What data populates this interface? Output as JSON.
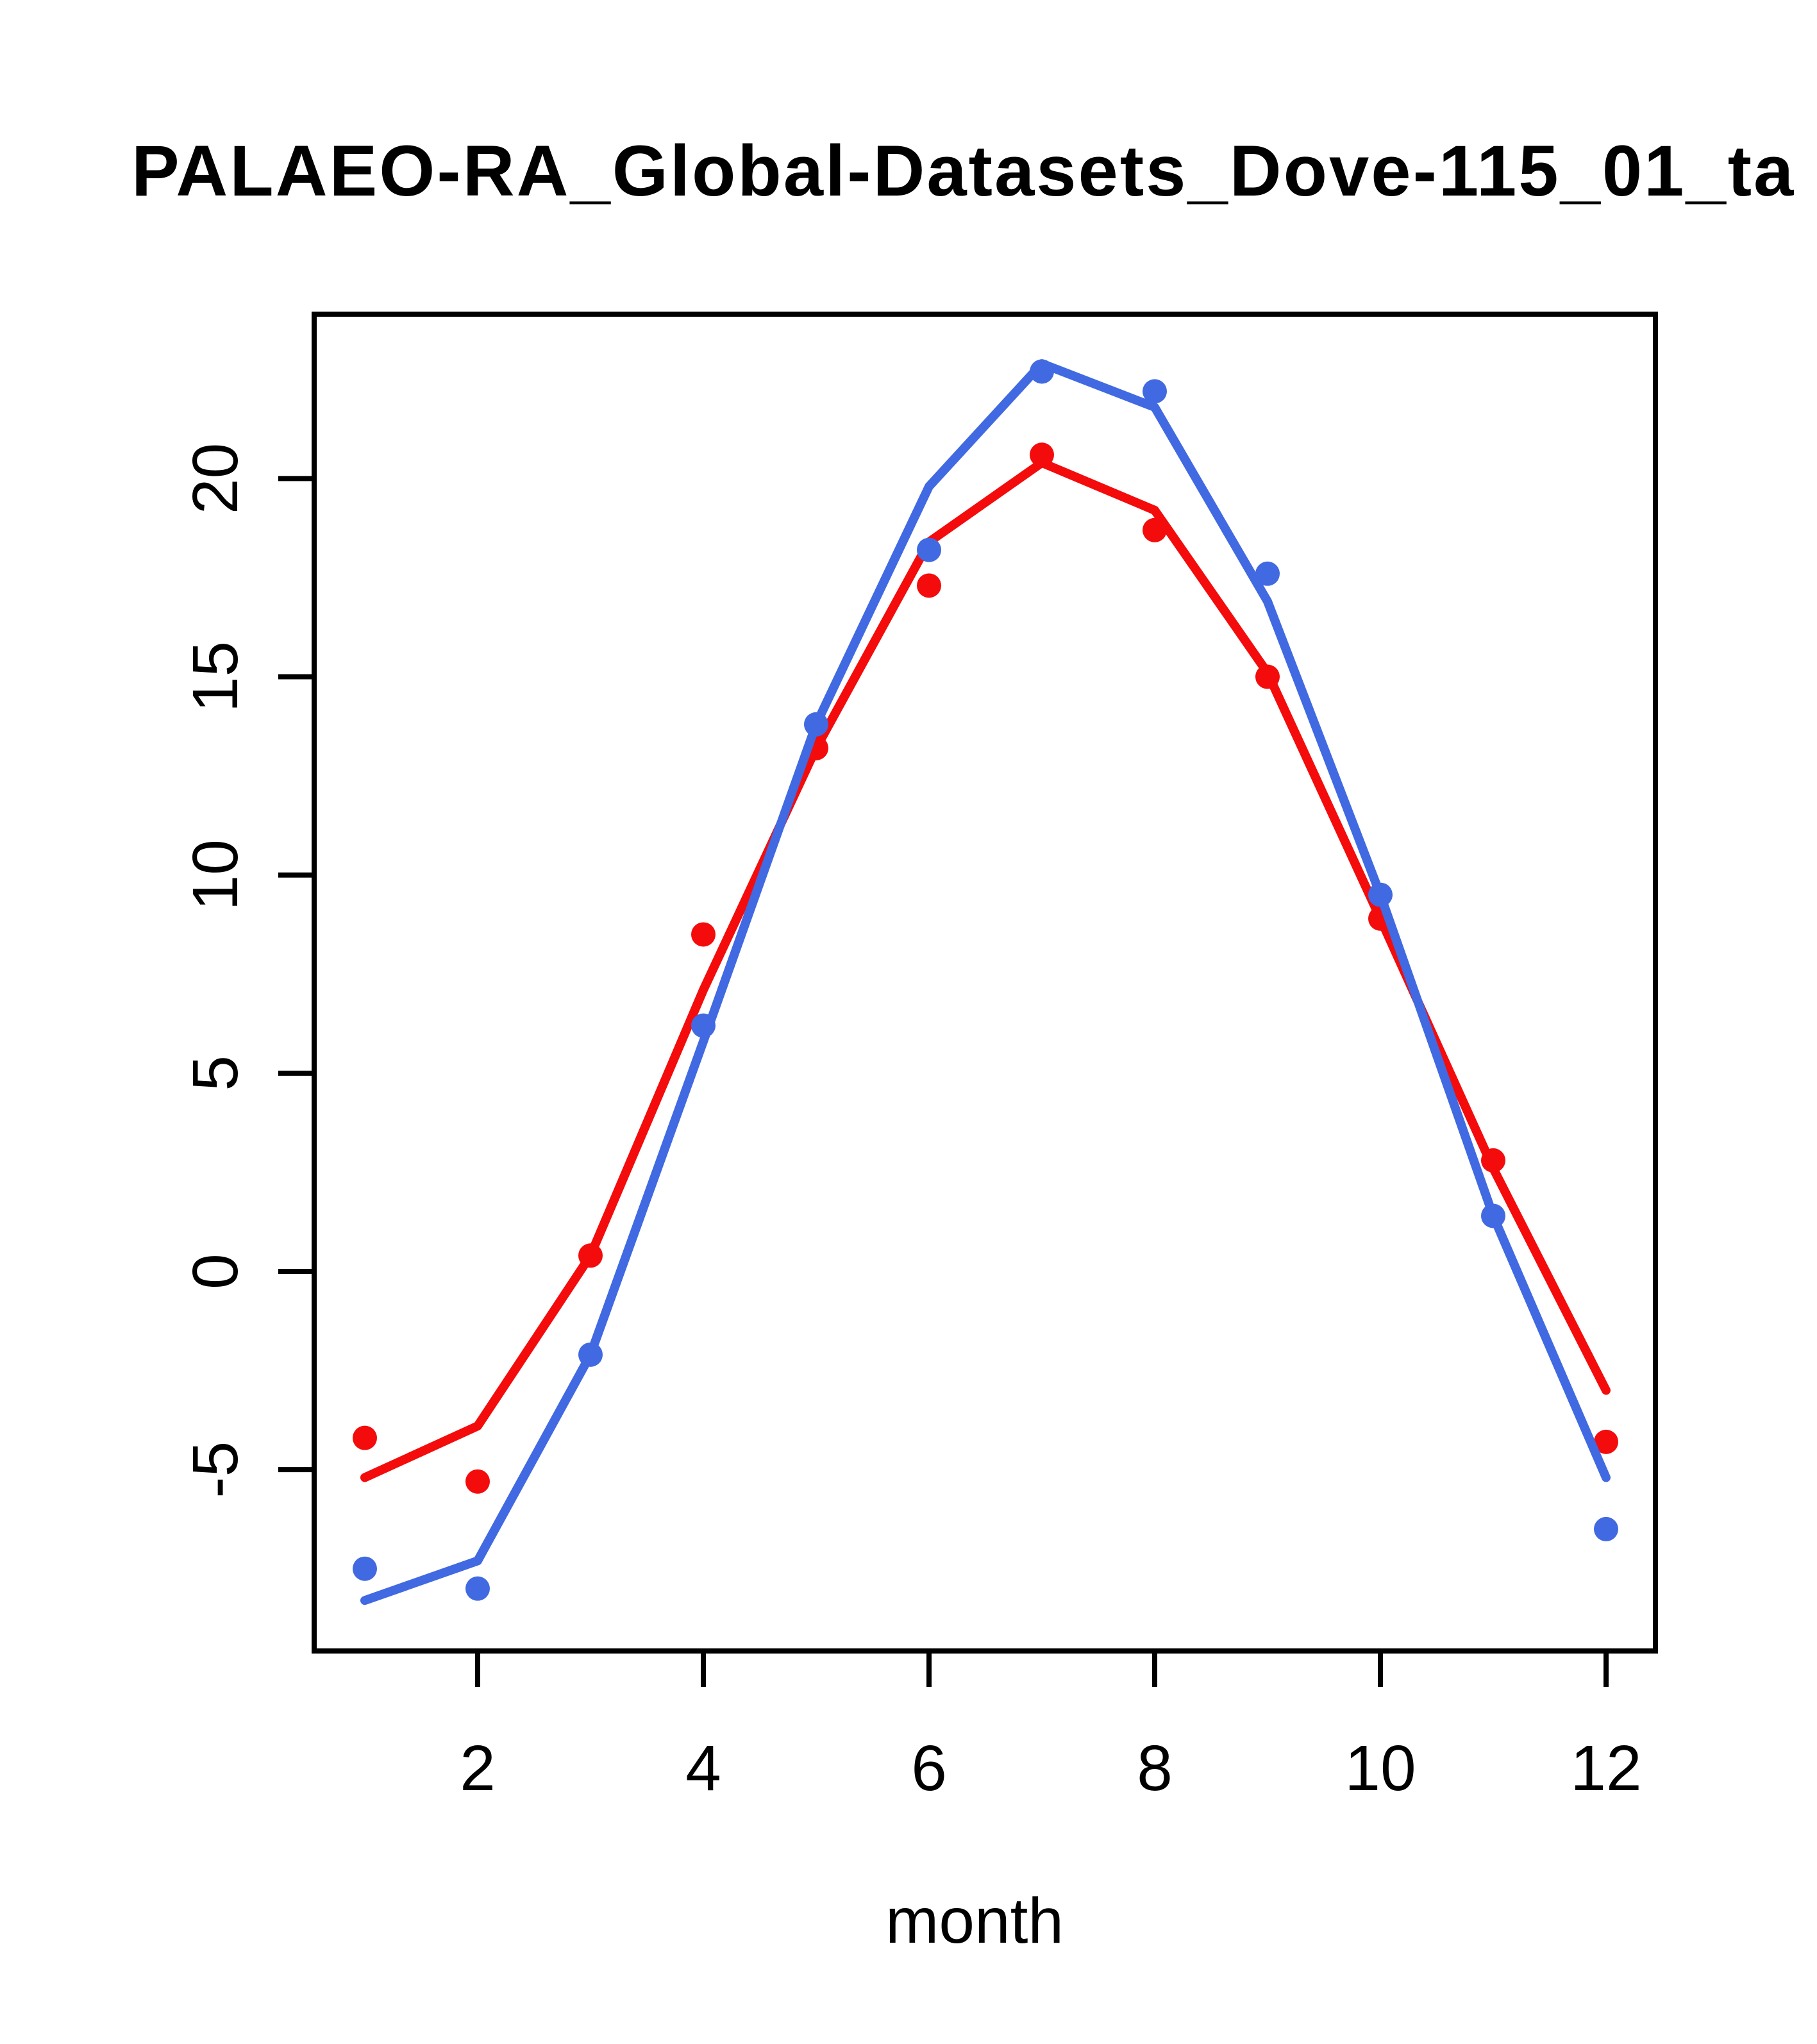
{
  "chart_data": {
    "type": "line",
    "title": "PALAEO-RA_Global-Datasets_Dove-115_01_ta",
    "title_note": "title truncated at right image edge",
    "xlabel": "month",
    "ylabel": "",
    "x": [
      1,
      2,
      3,
      4,
      5,
      6,
      7,
      8,
      9,
      10,
      11,
      12
    ],
    "x_ticks": [
      2,
      4,
      6,
      8,
      10,
      12
    ],
    "y_ticks": [
      -5,
      0,
      5,
      10,
      15,
      20
    ],
    "xlim": [
      0.56,
      12.44
    ],
    "ylim": [
      -9.6,
      24.2
    ],
    "grid": "off",
    "legend": "none",
    "colors": {
      "red_series": "#F40B0B",
      "blue_series": "#4169E1",
      "axis": "#000000",
      "background": "#FFFFFF"
    },
    "series": [
      {
        "name": "red-line",
        "style": "line",
        "color": "#F40B0B",
        "values": [
          -5.2,
          -3.9,
          0.4,
          7.1,
          13.2,
          18.4,
          20.4,
          19.2,
          15.1,
          8.9,
          2.6,
          -3.0
        ]
      },
      {
        "name": "red-points",
        "style": "points",
        "color": "#F40B0B",
        "values": [
          -4.2,
          -5.3,
          0.4,
          8.5,
          13.2,
          17.3,
          20.6,
          18.7,
          15.0,
          8.9,
          2.8,
          -4.3
        ]
      },
      {
        "name": "blue-line",
        "style": "line",
        "color": "#4169E1",
        "values": [
          -8.3,
          -7.3,
          -2.1,
          5.8,
          13.8,
          19.8,
          22.9,
          21.8,
          16.9,
          9.5,
          1.4,
          -5.2
        ]
      },
      {
        "name": "blue-points",
        "style": "points",
        "color": "#4169E1",
        "values": [
          -7.5,
          -8.0,
          -2.1,
          6.2,
          13.8,
          18.2,
          22.7,
          22.2,
          17.6,
          9.5,
          1.4,
          -6.5
        ]
      }
    ]
  }
}
